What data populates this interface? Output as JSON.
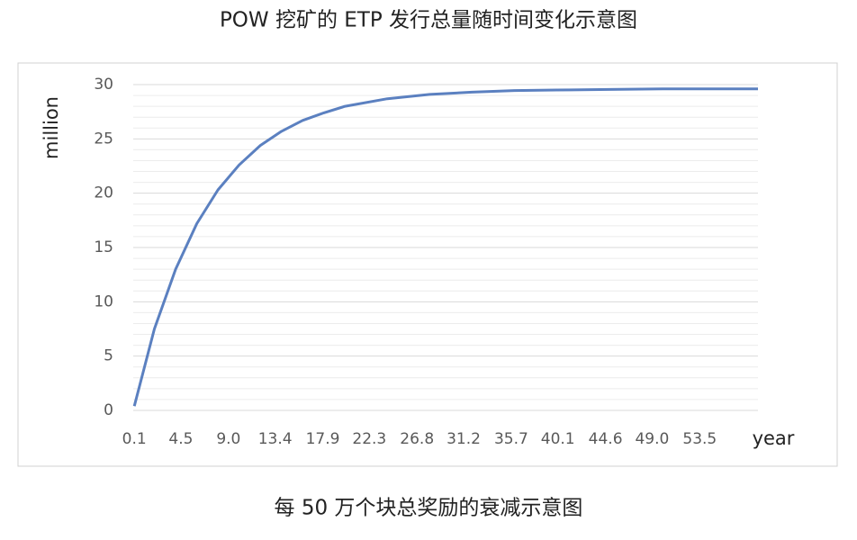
{
  "chart_data": {
    "type": "line",
    "title": "POW 挖矿的 ETP 发行总量随时间变化示意图",
    "caption": "每 50 万个块总奖励的衰减示意图",
    "xlabel": "year",
    "ylabel": "million",
    "x": [
      0.1,
      2,
      4,
      6,
      8,
      10,
      12,
      14,
      16,
      18,
      20,
      24,
      28,
      32,
      36,
      40,
      45,
      50,
      55,
      59
    ],
    "series": [
      {
        "color": "#5b80c0",
        "values": [
          0.4,
          7.5,
          13.0,
          17.2,
          20.3,
          22.6,
          24.4,
          25.7,
          26.7,
          27.4,
          28.0,
          28.7,
          29.1,
          29.3,
          29.45,
          29.5,
          29.55,
          29.6,
          29.6,
          29.6
        ]
      }
    ],
    "xlim": [
      0,
      59
    ],
    "xticks": [
      0.1,
      4.5,
      {
        "value": 9,
        "label": "9.0"
      },
      13.4,
      17.9,
      22.3,
      26.8,
      31.2,
      35.7,
      40.1,
      44.6,
      {
        "value": 49,
        "label": "49.0"
      },
      53.5
    ],
    "ylim": [
      0,
      30
    ],
    "yticks": [
      0,
      5,
      10,
      15,
      20,
      25,
      30
    ],
    "grid": true,
    "minor_grid": true
  }
}
